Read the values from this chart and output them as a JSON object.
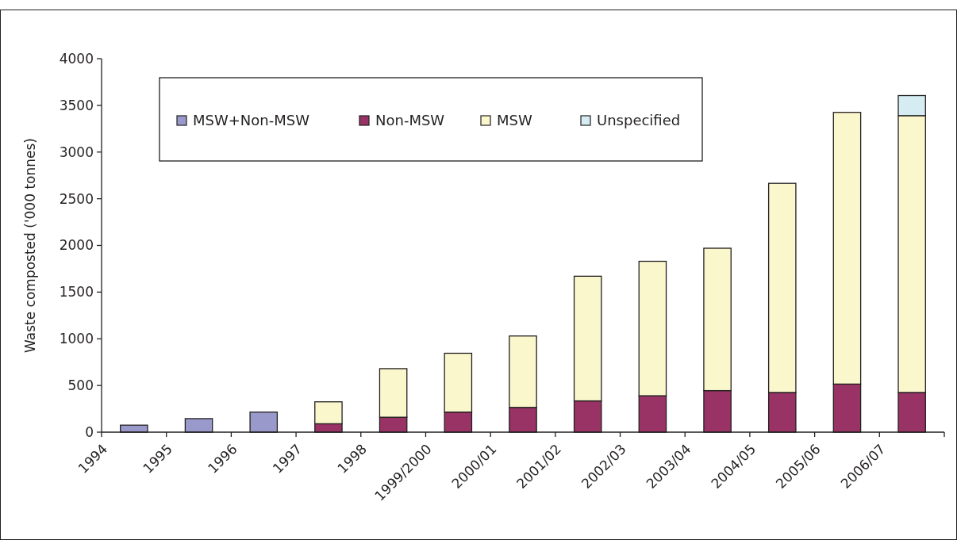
{
  "chart_data": {
    "type": "bar",
    "stacked": true,
    "ylabel": "Waste composted ('000 tonnes)",
    "categories": [
      "1994",
      "1995",
      "1996",
      "1997",
      "1998",
      "1999/2000",
      "2000/01",
      "2001/02",
      "2002/03",
      "2003/04",
      "2004/05",
      "2005/06",
      "2006/07"
    ],
    "series": [
      {
        "name": "MSW+Non-MSW",
        "color": "#9999cc",
        "values": [
          75,
          145,
          215,
          null,
          null,
          null,
          null,
          null,
          null,
          null,
          null,
          null,
          null
        ]
      },
      {
        "name": "Non-MSW",
        "color": "#993366",
        "values": [
          null,
          null,
          null,
          90,
          160,
          215,
          265,
          335,
          390,
          445,
          425,
          515,
          425
        ]
      },
      {
        "name": "MSW",
        "color": "#fbf7cc",
        "values": [
          null,
          null,
          null,
          235,
          520,
          630,
          765,
          1335,
          1440,
          1525,
          2240,
          2910,
          2965
        ]
      },
      {
        "name": "Unspecified",
        "color": "#d5ecf2",
        "values": [
          null,
          null,
          null,
          null,
          null,
          null,
          null,
          null,
          null,
          null,
          null,
          null,
          215
        ]
      }
    ],
    "ylim": [
      0,
      4000
    ],
    "yticks": [
      0,
      500,
      1000,
      1500,
      2000,
      2500,
      3000,
      3500,
      4000
    ],
    "grid": false,
    "legend": "top left"
  }
}
